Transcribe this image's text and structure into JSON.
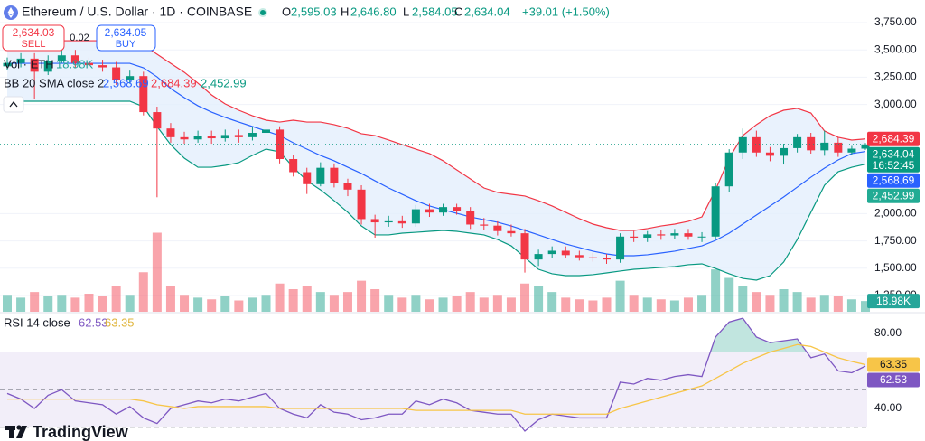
{
  "header": {
    "symbol": "Ethereum / U.S. Dollar · 1D · COINBASE",
    "ohlc": [
      {
        "key": "O",
        "value": "2,595.03"
      },
      {
        "key": "H",
        "value": "2,646.80"
      },
      {
        "key": "L",
        "value": "2,584.05"
      },
      {
        "key": "C",
        "value": "2,634.04"
      }
    ],
    "change": "+39.01 (+1.50%)",
    "sell_price": "2,634.03",
    "sell": "SELL",
    "spread": "0.02",
    "buy_price": "2,634.05",
    "buy": "BUY",
    "countdown": "16:52:45",
    "logo": "TradingView"
  },
  "chart_data": [
    {
      "type": "candlestick",
      "ylim": [
        1101,
        3957
      ],
      "yticks": [
        {
          "value": 3750,
          "label": "3,750.00"
        },
        {
          "value": 3500,
          "label": "3,500.00"
        },
        {
          "value": 3250,
          "label": "3,250.00"
        },
        {
          "value": 3000,
          "label": "3,000.00"
        },
        {
          "value": 2000,
          "label": "2,000.00"
        },
        {
          "value": 1750,
          "label": "1,750.00"
        },
        {
          "value": 1500,
          "label": "1,500.00"
        },
        {
          "value": 1250,
          "label": "1,250.00"
        }
      ],
      "grid": true,
      "up_color": "#089981",
      "down_color": "#f23645",
      "open": [
        3350,
        3380,
        3420,
        3300,
        3400,
        3450,
        3380,
        3360,
        3340,
        3220,
        3260,
        2930,
        2780,
        2700,
        2680,
        2710,
        2690,
        2720,
        2700,
        2740,
        2770,
        2500,
        2380,
        2270,
        2420,
        2280,
        2220,
        1950,
        1920,
        1930,
        1910,
        2040,
        2010,
        2060,
        2020,
        1900,
        1890,
        1840,
        1820,
        1580,
        1630,
        1660,
        1620,
        1600,
        1590,
        1580,
        1790,
        1780,
        1810,
        1800,
        1820,
        1790,
        1790,
        2250,
        2560,
        2700,
        2560,
        2530,
        2600,
        2700,
        2580,
        2650,
        2560,
        2595.03
      ],
      "high": [
        3430,
        3470,
        3470,
        3450,
        3510,
        3500,
        3430,
        3410,
        3390,
        3310,
        3300,
        2980,
        2830,
        2750,
        2760,
        2760,
        2770,
        2770,
        2790,
        2830,
        2800,
        2540,
        2420,
        2470,
        2460,
        2320,
        2260,
        1990,
        1980,
        1980,
        2080,
        2090,
        2090,
        2090,
        2060,
        1960,
        1930,
        1900,
        1860,
        1670,
        1700,
        1700,
        1660,
        1640,
        1630,
        1820,
        1840,
        1840,
        1850,
        1860,
        1860,
        1830,
        2280,
        2590,
        2780,
        2760,
        2610,
        2640,
        2730,
        2740,
        2760,
        2700,
        2620,
        2646.8
      ],
      "low": [
        3320,
        3340,
        3050,
        3270,
        3380,
        3340,
        3320,
        3300,
        3180,
        3190,
        2900,
        2150,
        2650,
        2640,
        2650,
        2640,
        2660,
        2650,
        2670,
        2700,
        2460,
        2340,
        2180,
        2250,
        2240,
        2160,
        1900,
        1780,
        1880,
        1870,
        1880,
        1970,
        1980,
        1990,
        1860,
        1850,
        1800,
        1790,
        1460,
        1520,
        1590,
        1590,
        1570,
        1560,
        1540,
        1550,
        1740,
        1740,
        1760,
        1770,
        1760,
        1740,
        1770,
        2200,
        2500,
        2520,
        2480,
        2450,
        2560,
        2550,
        2530,
        2520,
        2540,
        2584.05
      ],
      "close": [
        3380,
        3420,
        3300,
        3400,
        3450,
        3380,
        3360,
        3340,
        3220,
        3260,
        2930,
        2780,
        2700,
        2680,
        2710,
        2690,
        2720,
        2700,
        2740,
        2770,
        2500,
        2380,
        2270,
        2420,
        2280,
        2220,
        1950,
        1920,
        1930,
        1910,
        2040,
        2010,
        2060,
        2020,
        1900,
        1890,
        1840,
        1820,
        1580,
        1630,
        1660,
        1620,
        1600,
        1590,
        1580,
        1790,
        1780,
        1810,
        1800,
        1820,
        1790,
        1790,
        2250,
        2560,
        2700,
        2560,
        2530,
        2600,
        2700,
        2580,
        2650,
        2560,
        2595.03,
        2634.04
      ],
      "volume": {
        "title": "Vol · ETH",
        "last_label": "18.98K",
        "ylim": [
          0,
          200
        ],
        "color": "#26a69a",
        "values": [
          30,
          25,
          35,
          28,
          30,
          25,
          32,
          28,
          45,
          30,
          70,
          140,
          45,
          30,
          25,
          22,
          28,
          20,
          25,
          30,
          50,
          40,
          45,
          35,
          30,
          35,
          55,
          40,
          30,
          25,
          30,
          22,
          25,
          28,
          35,
          25,
          30,
          25,
          50,
          45,
          35,
          25,
          22,
          20,
          25,
          55,
          30,
          25,
          22,
          20,
          25,
          30,
          75,
          60,
          45,
          35,
          30,
          40,
          35,
          25,
          30,
          28,
          22,
          18.98
        ]
      },
      "bb": {
        "title": "BB 20 SMA close 2",
        "fill": "#e3effd",
        "basis": {
          "color": "#2962ff",
          "last_label": "2,568.69",
          "values": [
            3377,
            3377,
            3377,
            3377,
            3377,
            3377,
            3377,
            3377,
            3377,
            3377,
            3336,
            3253,
            3146,
            3063,
            2988,
            2930,
            2881,
            2839,
            2798,
            2757,
            2715,
            2649,
            2591,
            2533,
            2484,
            2425,
            2368,
            2301,
            2235,
            2177,
            2119,
            2070,
            2036,
            2003,
            1970,
            1945,
            1921,
            1887,
            1846,
            1805,
            1763,
            1722,
            1689,
            1656,
            1631,
            1614,
            1614,
            1623,
            1639,
            1656,
            1681,
            1705,
            1755,
            1821,
            1904,
            1987,
            2070,
            2152,
            2243,
            2334,
            2417,
            2492,
            2550,
            2568.69
          ]
        },
        "upper": {
          "color": "#f23645",
          "last_label": "2,684.39",
          "values": [
            3584,
            3584,
            3584,
            3584,
            3584,
            3584,
            3584,
            3584,
            3584,
            3584,
            3543,
            3460,
            3377,
            3295,
            3195,
            3088,
            3005,
            2947,
            2897,
            2856,
            2839,
            2856,
            2839,
            2839,
            2815,
            2782,
            2732,
            2715,
            2674,
            2632,
            2591,
            2550,
            2484,
            2401,
            2318,
            2235,
            2194,
            2177,
            2161,
            2119,
            2070,
            2012,
            1954,
            1904,
            1871,
            1846,
            1846,
            1863,
            1887,
            1904,
            1929,
            1970,
            2218,
            2508,
            2715,
            2815,
            2897,
            2947,
            2964,
            2922,
            2757,
            2699,
            2674,
            2684.39
          ]
        },
        "lower": {
          "color": "#089981",
          "last_label": "2,452.99",
          "values": [
            3030,
            3030,
            3030,
            3030,
            3030,
            3030,
            3030,
            3030,
            3030,
            3030,
            2980,
            2798,
            2632,
            2508,
            2425,
            2425,
            2442,
            2467,
            2533,
            2591,
            2566,
            2425,
            2301,
            2218,
            2119,
            2012,
            1887,
            1805,
            1805,
            1821,
            1829,
            1838,
            1846,
            1838,
            1821,
            1805,
            1763,
            1705,
            1598,
            1490,
            1449,
            1432,
            1432,
            1441,
            1457,
            1474,
            1490,
            1498,
            1507,
            1515,
            1532,
            1540,
            1498,
            1449,
            1407,
            1391,
            1432,
            1556,
            1763,
            2012,
            2260,
            2384,
            2425,
            2452.99
          ]
        }
      }
    },
    {
      "type": "line",
      "title": "RSI 14 close",
      "ylim": [
        22.7,
        90
      ],
      "yticks": [
        {
          "value": 80,
          "label": "80.00"
        },
        {
          "value": 40,
          "label": "40.00"
        }
      ],
      "levels": [
        70,
        50,
        30
      ],
      "series": [
        {
          "color": "#7e57c2",
          "value_label": "62.53",
          "values": [
            48,
            45,
            40,
            47,
            50,
            44,
            43,
            42,
            37,
            41,
            35,
            32,
            40,
            42,
            44,
            43,
            45,
            44,
            46,
            48,
            40,
            37,
            35,
            42,
            38,
            37,
            34,
            35,
            37,
            37,
            44,
            42,
            45,
            43,
            39,
            38,
            37,
            37,
            28,
            34,
            37,
            36,
            35,
            35,
            35,
            54,
            53,
            56,
            55,
            57,
            58,
            57,
            78,
            86,
            88,
            78,
            75,
            76,
            77,
            67,
            69,
            60,
            59,
            62.53
          ]
        },
        {
          "color": "#f7c548",
          "value_label": "63.35",
          "values": [
            45,
            45,
            45,
            45,
            45,
            45,
            45,
            45,
            45,
            45,
            44,
            42,
            41,
            40,
            41,
            41,
            41,
            41,
            41,
            41,
            40,
            40,
            40,
            40,
            40,
            40,
            40,
            40,
            40,
            40,
            39,
            39,
            39,
            39,
            39,
            39,
            39,
            39,
            37,
            37,
            37,
            37,
            37,
            37,
            37,
            40,
            42,
            44,
            46,
            48,
            50,
            52,
            56,
            60,
            64,
            67,
            70,
            72,
            74,
            73,
            70,
            67,
            65,
            63.35
          ]
        }
      ]
    }
  ]
}
